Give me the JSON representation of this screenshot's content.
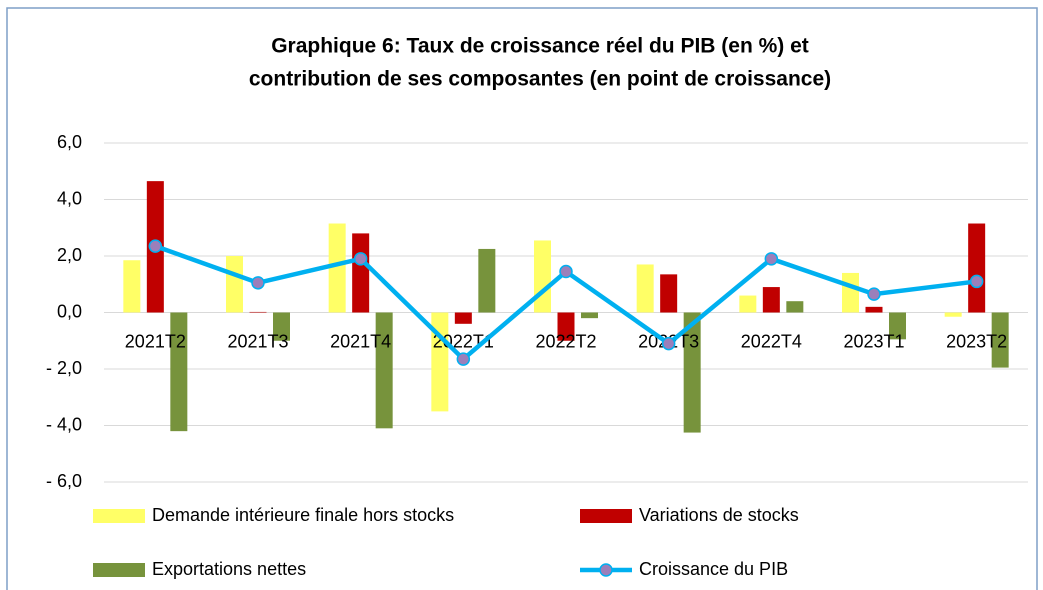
{
  "chart_data": {
    "type": "bar",
    "title": [
      "Graphique 6: Taux de croissance réel du PIB (en %) et",
      "contribution de ses composantes (en point de croissance)"
    ],
    "categories": [
      "2021T2",
      "2021T3",
      "2021T4",
      "2022T1",
      "2022T2",
      "2022T3",
      "2022T4",
      "2023T1",
      "2023T2"
    ],
    "series": [
      {
        "name": "Demande intérieure finale hors stocks",
        "color": "#ffff66",
        "type": "bar",
        "values": [
          1.85,
          2.0,
          3.15,
          -3.5,
          2.55,
          1.7,
          0.6,
          1.4,
          -0.15
        ]
      },
      {
        "name": "Variations de stocks",
        "color": "#c00000",
        "type": "bar",
        "values": [
          4.65,
          0.02,
          2.8,
          -0.4,
          -1.0,
          1.35,
          0.9,
          0.2,
          3.15
        ]
      },
      {
        "name": "Exportations nettes",
        "color": "#77933c",
        "type": "bar",
        "values": [
          -4.2,
          -1.0,
          -4.1,
          2.25,
          -0.2,
          -4.25,
          0.4,
          -0.95,
          -1.95
        ]
      },
      {
        "name": "Croissance du PIB",
        "color": "#00b0f0",
        "marker_color": "#9b7fba",
        "type": "line",
        "values": [
          2.35,
          1.05,
          1.9,
          -1.65,
          1.45,
          -1.1,
          1.9,
          0.65,
          1.1
        ]
      }
    ],
    "ylim": [
      -6,
      6
    ],
    "yticks": [
      {
        "value": -6,
        "label": "- 6,0"
      },
      {
        "value": -4,
        "label": "- 4,0"
      },
      {
        "value": -2,
        "label": "- 2,0"
      },
      {
        "value": 0,
        "label": "0,0"
      },
      {
        "value": 2,
        "label": "2,0"
      },
      {
        "value": 4,
        "label": "4,0"
      },
      {
        "value": 6,
        "label": "6,0"
      }
    ],
    "grid": true
  }
}
